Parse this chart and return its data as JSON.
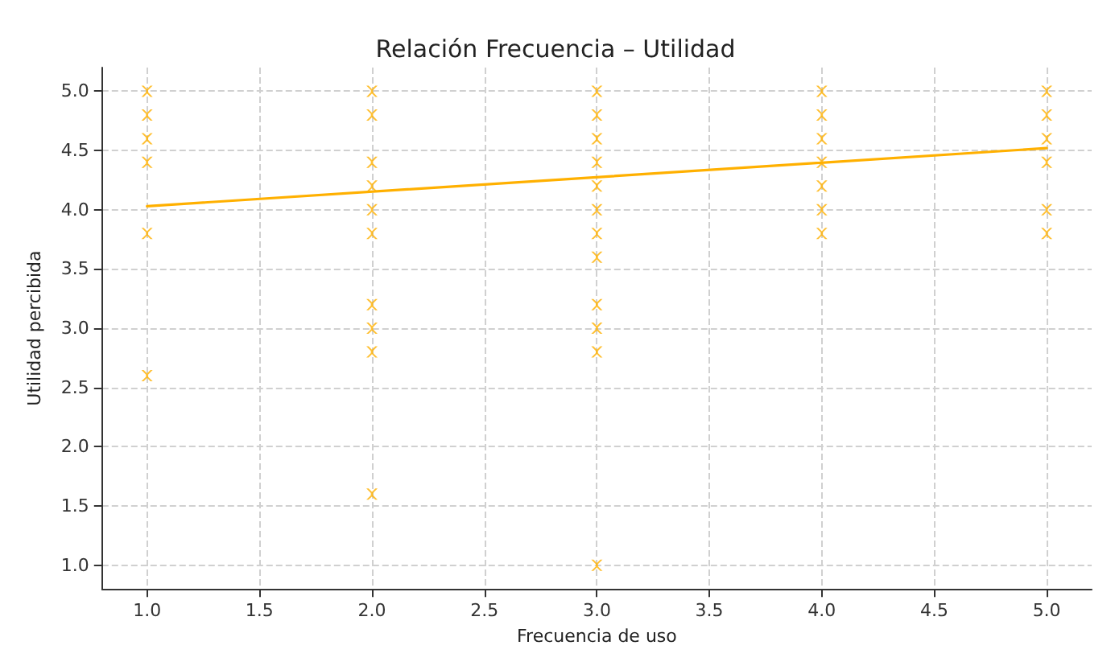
{
  "chart_data": {
    "type": "scatter",
    "title": "Relación Frecuencia – Utilidad",
    "xlabel": "Frecuencia de uso",
    "ylabel": "Utilidad percibida",
    "xlim": [
      0.8,
      5.2
    ],
    "ylim": [
      0.8,
      5.2
    ],
    "xticks": [
      {
        "value": 1,
        "label": "1.0"
      },
      1.5,
      {
        "value": 2,
        "label": "2.0"
      },
      2.5,
      {
        "value": 3,
        "label": "3.0"
      },
      3.5,
      {
        "value": 4,
        "label": "4.0"
      },
      4.5,
      {
        "value": 5,
        "label": "5.0"
      }
    ],
    "yticks": [
      {
        "value": 1,
        "label": "1.0"
      },
      1.5,
      {
        "value": 2,
        "label": "2.0"
      },
      2.5,
      {
        "value": 3,
        "label": "3.0"
      },
      3.5,
      {
        "value": 4,
        "label": "4.0"
      },
      4.5,
      {
        "value": 5,
        "label": "5.0"
      }
    ],
    "grid": true,
    "series": [
      {
        "marker": "cross",
        "color": "#ffb000",
        "x": [
          1,
          1,
          1,
          1,
          1,
          1,
          2,
          2,
          2,
          2,
          2,
          2,
          2,
          2,
          2,
          2,
          3,
          3,
          3,
          3,
          3,
          3,
          3,
          3,
          3,
          3,
          3,
          3,
          4,
          4,
          4,
          4,
          4,
          4,
          4,
          5,
          5,
          5,
          5,
          5,
          5
        ],
        "values": [
          5.0,
          4.8,
          4.6,
          4.4,
          3.8,
          2.6,
          5.0,
          4.8,
          4.4,
          4.2,
          4.0,
          3.8,
          3.2,
          3.0,
          2.8,
          1.6,
          5.0,
          4.8,
          4.6,
          4.4,
          4.2,
          4.0,
          3.8,
          3.6,
          3.2,
          3.0,
          2.8,
          1.0,
          5.0,
          4.8,
          4.6,
          4.4,
          4.2,
          4.0,
          3.8,
          5.0,
          4.8,
          4.6,
          4.4,
          4.0,
          3.8
        ]
      },
      {
        "type": "line",
        "color": "#ffb000",
        "x": [
          1,
          5
        ],
        "values": [
          4.03,
          4.52
        ],
        "line_style": "solid",
        "marker": "none"
      }
    ]
  }
}
